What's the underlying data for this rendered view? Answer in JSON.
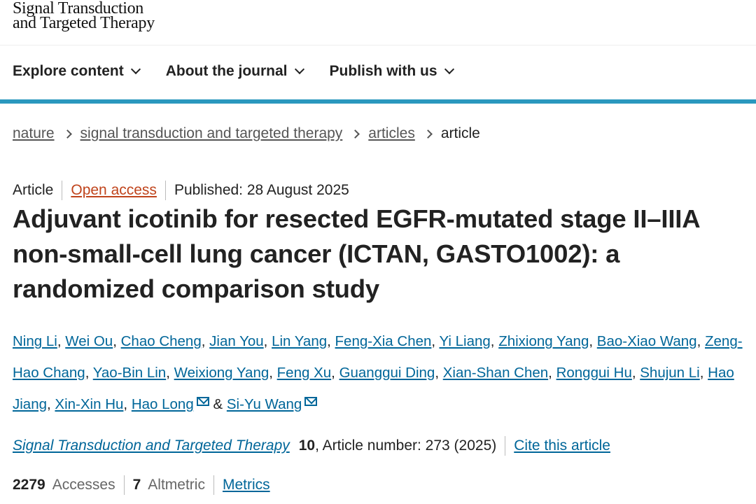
{
  "logo": {
    "line1": "Signal Transduction",
    "line2": "and Targeted Therapy"
  },
  "nav": [
    {
      "label": "Explore content"
    },
    {
      "label": "About the journal"
    },
    {
      "label": "Publish with us"
    }
  ],
  "breadcrumb": [
    "nature",
    "signal transduction and targeted therapy",
    "articles",
    "article"
  ],
  "meta": {
    "type": "Article",
    "access": "Open access",
    "published": "Published: 28 August 2025"
  },
  "title": "Adjuvant icotinib for resected EGFR-mutated stage II–IIIA non-small-cell lung cancer (ICTAN, GASTO1002): a randomized comparison study",
  "authors": [
    "Ning Li",
    "Wei Ou",
    "Chao Cheng",
    "Jian You",
    "Lin Yang",
    "Feng-Xia Chen",
    "Yi Liang",
    "Zhixiong Yang",
    "Bao-Xiao Wang",
    "Zeng-Hao Chang",
    "Yao-Bin Lin",
    "Weixiong Yang",
    "Feng Xu",
    "Guanggui Ding",
    "Xian-Shan Chen",
    "Ronggui Hu",
    "Shujun Li",
    "Hao Jiang",
    "Xin-Xin Hu",
    "Hao Long",
    "Si-Yu Wang"
  ],
  "author_amp": "&",
  "citation": {
    "journal": "Signal Transduction and Targeted Therapy",
    "volume": "10",
    "rest": ", Article number: 273 (2025)",
    "cite_link": "Cite this article"
  },
  "stats": {
    "accesses": "2279",
    "accesses_label": "Accesses",
    "altmetric": "7",
    "altmetric_label": "Altmetric",
    "metrics_link": "Metrics"
  },
  "colors": {
    "accent": "#2a98be",
    "link": "#006699",
    "open_access": "#c0441c"
  }
}
